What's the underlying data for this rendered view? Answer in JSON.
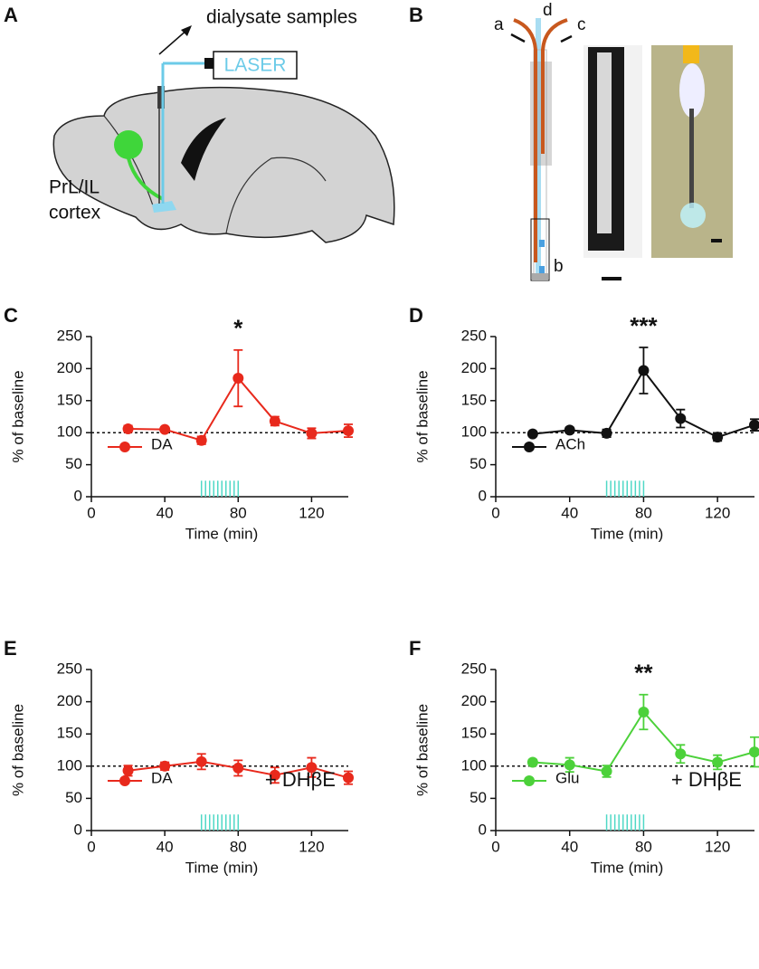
{
  "panel_labels": [
    "A",
    "B",
    "C",
    "D",
    "E",
    "F"
  ],
  "diagram_a": {
    "output_label": "dialysate samples",
    "source_label": "LASER",
    "region_label": [
      "PrL/IL",
      "cortex"
    ]
  },
  "diagram_b": {
    "tube_labels": [
      "a",
      "b",
      "c",
      "d"
    ]
  },
  "chart_data": [
    {
      "type": "line",
      "x": [
        20,
        40,
        60,
        80,
        100,
        120,
        140
      ],
      "series": [
        {
          "name": "DA",
          "color": "#e8291c",
          "values": [
            106,
            105,
            88,
            185,
            118,
            99,
            103
          ],
          "errors": [
            5,
            3,
            6,
            44,
            7,
            8,
            10
          ]
        }
      ],
      "xlim": [
        0,
        140
      ],
      "xticks": [
        0,
        40,
        80,
        120
      ],
      "ylim": [
        0,
        250
      ],
      "yticks": [
        0,
        50,
        100,
        150,
        200,
        250
      ],
      "xlabel": "Time (min)",
      "ylabel": "% of baseline",
      "baseline": 100,
      "annotation": "*",
      "stimulus": {
        "range": [
          60,
          80
        ],
        "height": 25,
        "pulses": 10,
        "color": "#4fd8c6"
      }
    },
    {
      "type": "line",
      "x": [
        20,
        40,
        60,
        80,
        100,
        120,
        140
      ],
      "series": [
        {
          "name": "ACh",
          "color": "#111111",
          "values": [
            98,
            104,
            99,
            197,
            122,
            93,
            112
          ],
          "errors": [
            3,
            4,
            6,
            36,
            14,
            6,
            9
          ]
        }
      ],
      "xlim": [
        0,
        140
      ],
      "xticks": [
        0,
        40,
        80,
        120
      ],
      "ylim": [
        0,
        250
      ],
      "yticks": [
        0,
        50,
        100,
        150,
        200,
        250
      ],
      "xlabel": "Time (min)",
      "ylabel": "% of baseline",
      "baseline": 100,
      "annotation": "***",
      "stimulus": {
        "range": [
          60,
          80
        ],
        "height": 25,
        "pulses": 10,
        "color": "#4fd8c6"
      }
    },
    {
      "type": "line",
      "x": [
        20,
        40,
        60,
        80,
        100,
        120,
        140
      ],
      "series": [
        {
          "name": "DA",
          "color": "#e8291c",
          "values": [
            93,
            100,
            107,
            97,
            86,
            98,
            82
          ],
          "errors": [
            8,
            6,
            12,
            12,
            12,
            15,
            10
          ]
        }
      ],
      "xlim": [
        0,
        140
      ],
      "xticks": [
        0,
        40,
        80,
        120
      ],
      "ylim": [
        0,
        250
      ],
      "yticks": [
        0,
        50,
        100,
        150,
        200,
        250
      ],
      "xlabel": "Time (min)",
      "ylabel": "% of baseline",
      "baseline": 100,
      "condition": "+ DHβE",
      "stimulus": {
        "range": [
          60,
          80
        ],
        "height": 25,
        "pulses": 10,
        "color": "#4fd8c6"
      }
    },
    {
      "type": "line",
      "x": [
        20,
        40,
        60,
        80,
        100,
        120,
        140
      ],
      "series": [
        {
          "name": "Glu",
          "color": "#4cd13a",
          "values": [
            106,
            102,
            92,
            184,
            119,
            106,
            122
          ],
          "errors": [
            4,
            11,
            9,
            27,
            14,
            11,
            23
          ]
        }
      ],
      "xlim": [
        0,
        140
      ],
      "xticks": [
        0,
        40,
        80,
        120
      ],
      "ylim": [
        0,
        250
      ],
      "yticks": [
        0,
        50,
        100,
        150,
        200,
        250
      ],
      "xlabel": "Time (min)",
      "ylabel": "% of baseline",
      "baseline": 100,
      "annotation": "**",
      "condition": "+ DHβE",
      "stimulus": {
        "range": [
          60,
          80
        ],
        "height": 25,
        "pulses": 10,
        "color": "#4fd8c6"
      }
    }
  ]
}
